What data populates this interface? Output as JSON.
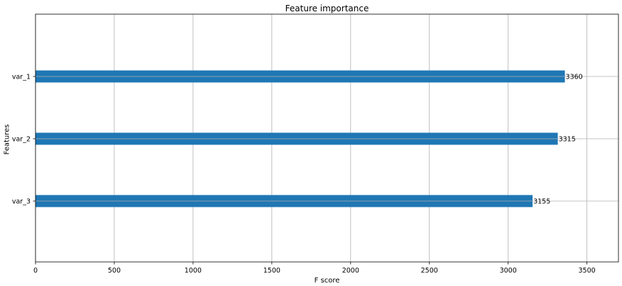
{
  "chart_data": {
    "type": "bar",
    "orientation": "horizontal",
    "title": "Feature importance",
    "xlabel": "F score",
    "ylabel": "Features",
    "categories": [
      "var_3",
      "var_2",
      "var_1"
    ],
    "values": [
      3155,
      3315,
      3360
    ],
    "data_labels": [
      "3155",
      "3315",
      "3360"
    ],
    "xlim": [
      0,
      3700
    ],
    "x_ticks": [
      0,
      500,
      1000,
      1500,
      2000,
      2500,
      3000,
      3500
    ],
    "x_tick_labels": [
      "0",
      "500",
      "1000",
      "1500",
      "2000",
      "2500",
      "3000",
      "3500"
    ],
    "grid": true,
    "bar_color": "#1f77b4",
    "grid_color": "#b0b0b0"
  }
}
